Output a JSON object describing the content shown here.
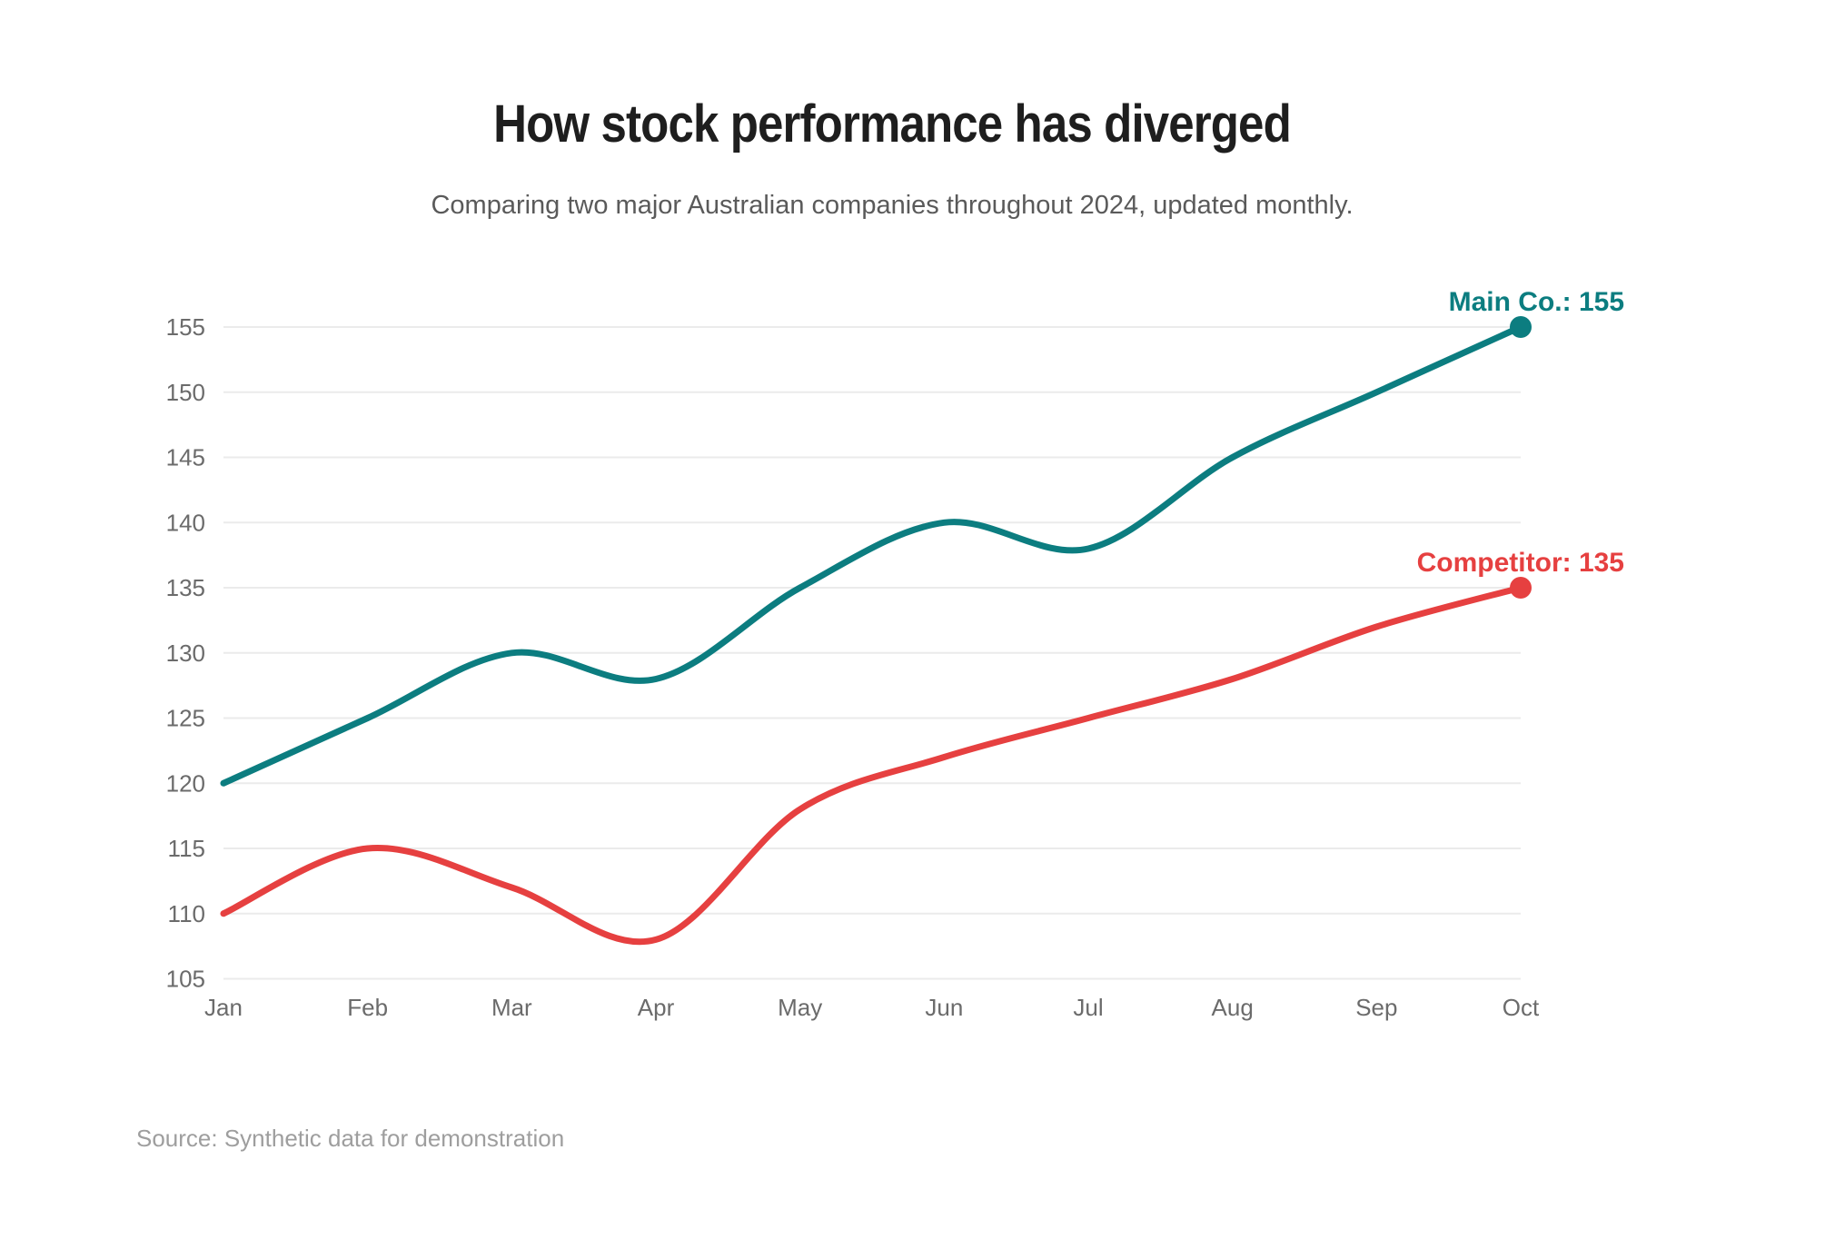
{
  "chart_data": {
    "type": "line",
    "title": "How stock performance has diverged",
    "subtitle": "Comparing two major Australian companies throughout 2024, updated monthly.",
    "source": "Source: Synthetic data for demonstration",
    "categories": [
      "Jan",
      "Feb",
      "Mar",
      "Apr",
      "May",
      "Jun",
      "Jul",
      "Aug",
      "Sep",
      "Oct"
    ],
    "series": [
      {
        "name": "Main Co.",
        "color": "#0c7d80",
        "values": [
          120,
          125,
          130,
          128,
          135,
          140,
          138,
          145,
          150,
          155
        ],
        "end_label": "Main Co.: 155",
        "end_value": 155
      },
      {
        "name": "Competitor",
        "color": "#e64040",
        "values": [
          110,
          115,
          112,
          108,
          118,
          122,
          125,
          128,
          132,
          135
        ],
        "end_label": "Competitor: 135",
        "end_value": 135
      }
    ],
    "ylim": [
      105,
      155
    ],
    "yticks": [
      105,
      110,
      115,
      120,
      125,
      130,
      135,
      140,
      145,
      150,
      155
    ],
    "grid": "horizontal",
    "legend": "colored end-of-line labels with dots"
  },
  "colors": {
    "title": "#1e1e1e",
    "subtitle": "#5a5a5a",
    "ticks": "#6b6b6b",
    "gridline": "#ebebeb",
    "source": "#9e9e9e",
    "background": "#ffffff"
  }
}
